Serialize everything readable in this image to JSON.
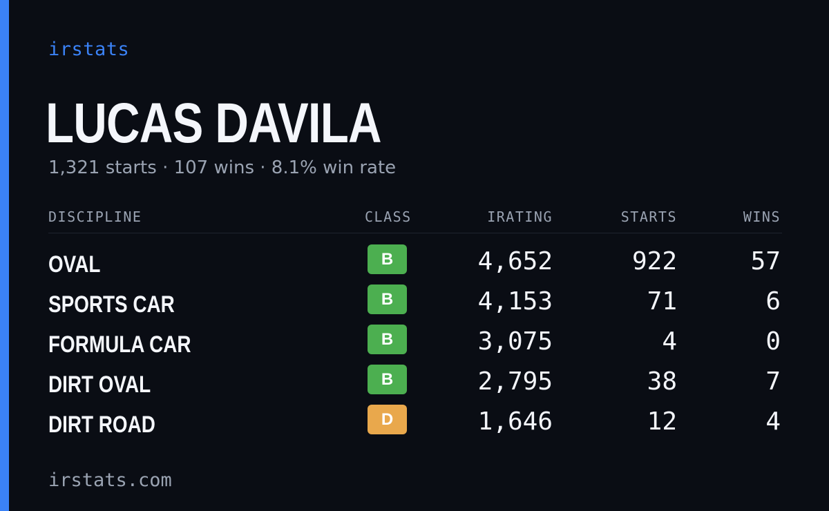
{
  "brand": "irstats",
  "driver_name": "LUCAS DAVILA",
  "summary": "1,321 starts · 107 wins · 8.1% win rate",
  "colors": {
    "background": "#0a0d14",
    "accent": "#3b82f6",
    "class_b": "#4caf50",
    "class_d": "#e9a84c",
    "muted": "#9aa3b2",
    "text": "#f4f6fb"
  },
  "table": {
    "headers": {
      "discipline": "DISCIPLINE",
      "class": "CLASS",
      "irating": "IRATING",
      "starts": "STARTS",
      "wins": "WINS"
    },
    "rows": [
      {
        "discipline": "OVAL",
        "class": "B",
        "class_color": "#4caf50",
        "irating": "4,652",
        "starts": "922",
        "wins": "57"
      },
      {
        "discipline": "SPORTS CAR",
        "class": "B",
        "class_color": "#4caf50",
        "irating": "4,153",
        "starts": "71",
        "wins": "6"
      },
      {
        "discipline": "FORMULA CAR",
        "class": "B",
        "class_color": "#4caf50",
        "irating": "3,075",
        "starts": "4",
        "wins": "0"
      },
      {
        "discipline": "DIRT OVAL",
        "class": "B",
        "class_color": "#4caf50",
        "irating": "2,795",
        "starts": "38",
        "wins": "7"
      },
      {
        "discipline": "DIRT ROAD",
        "class": "D",
        "class_color": "#e9a84c",
        "irating": "1,646",
        "starts": "12",
        "wins": "4"
      }
    ]
  },
  "footer": "irstats.com"
}
